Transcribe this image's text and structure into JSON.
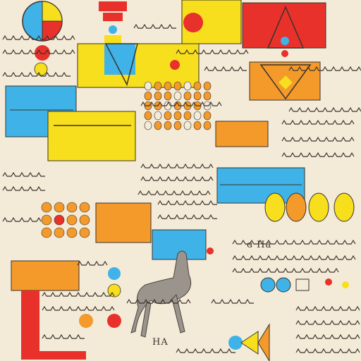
{
  "palette": {
    "background": "#f4ead8",
    "ink": "#3a332c",
    "red": "#e8312a",
    "yellow": "#f7df1e",
    "blue": "#3fb3e8",
    "orange": "#f39a2b",
    "grey": "#9a948d"
  },
  "labels": {
    "bottom_caption": "HA",
    "mid_caption": "ɞ Ha"
  }
}
